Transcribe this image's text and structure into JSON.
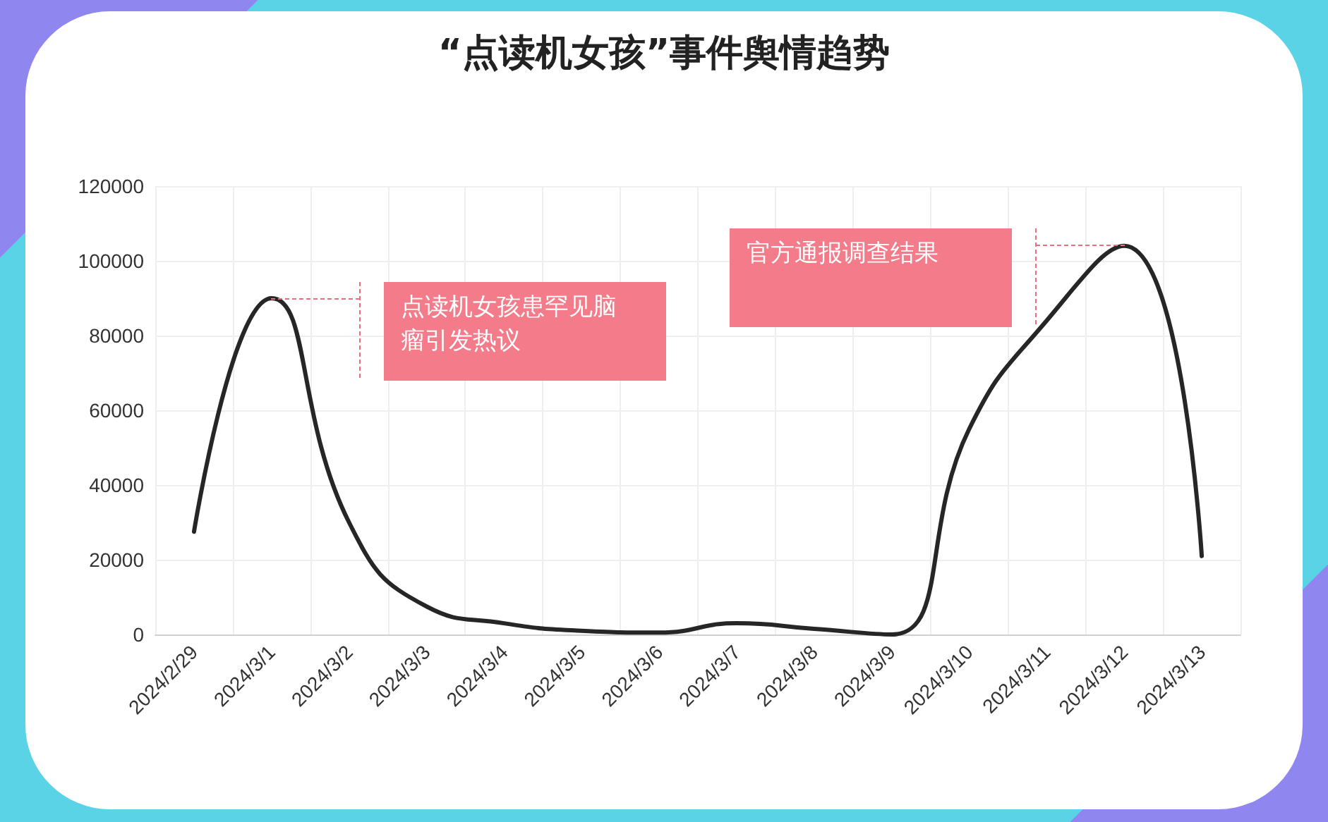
{
  "chart_data": {
    "type": "line",
    "title": "“点读机女孩”事件舆情趋势",
    "categories": [
      "2024/2/29",
      "2024/3/1",
      "2024/3/2",
      "2024/3/3",
      "2024/3/4",
      "2024/3/5",
      "2024/3/6",
      "2024/3/7",
      "2024/3/8",
      "2024/3/9",
      "2024/3/10",
      "2024/3/11",
      "2024/3/12",
      "2024/3/13"
    ],
    "series": [
      {
        "color": "#262626",
        "values": [
          27500,
          90000,
          30000,
          7500,
          3000,
          1000,
          500,
          3000,
          1500,
          0,
          55000,
          84000,
          104000,
          21000
        ]
      }
    ],
    "ylim": [
      0,
      120000
    ],
    "yticks": [
      0,
      20000,
      40000,
      60000,
      80000,
      100000,
      120000
    ],
    "grid": true,
    "marker": "none",
    "line_style": "solid",
    "annotations": [
      "点读机女孩患罕见脑瘤引发热议",
      "官方通报调查结果"
    ]
  }
}
